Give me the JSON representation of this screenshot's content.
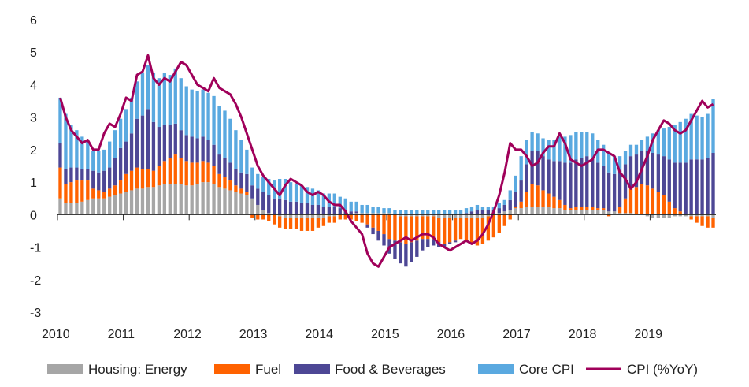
{
  "chart_data": {
    "type": "bar",
    "title": "",
    "xlabel": "",
    "ylabel": "",
    "ylim": [
      -3,
      6
    ],
    "yticks": [
      6,
      5,
      4,
      3,
      2,
      1,
      0,
      -1,
      -2,
      -3
    ],
    "xticks": [
      "2010",
      "2011",
      "2012",
      "2013",
      "2014",
      "2015",
      "2016",
      "2017",
      "2018",
      "2019"
    ],
    "stacked": true,
    "grid": false,
    "legend_position": "bottom",
    "x_start": "2010-01",
    "x_end": "2019-12",
    "colors": {
      "housing_energy": "#a6a6a6",
      "fuel": "#ff6200",
      "food": "#4d4795",
      "core": "#5aa9e0",
      "cpi": "#a0005a"
    },
    "series": [
      {
        "name": "Housing: Energy",
        "values": [
          0.5,
          0.35,
          0.35,
          0.35,
          0.4,
          0.45,
          0.5,
          0.5,
          0.5,
          0.55,
          0.6,
          0.65,
          0.7,
          0.75,
          0.8,
          0.8,
          0.85,
          0.85,
          0.9,
          0.95,
          0.95,
          0.95,
          0.95,
          0.9,
          0.9,
          0.95,
          1.0,
          1.0,
          0.95,
          0.85,
          0.8,
          0.75,
          0.7,
          0.65,
          0.6,
          0.5,
          0.3,
          0.15,
          0.05,
          0.0,
          -0.05,
          -0.1,
          -0.1,
          -0.1,
          -0.1,
          -0.1,
          -0.1,
          -0.1,
          -0.1,
          -0.05,
          -0.05,
          0.0,
          0.0,
          0.0,
          0.05,
          0.05,
          0.05,
          0.05,
          0.05,
          0.05,
          0.05,
          0.0,
          -0.05,
          -0.05,
          -0.05,
          -0.05,
          -0.05,
          -0.05,
          -0.05,
          -0.1,
          -0.1,
          -0.1,
          -0.1,
          -0.1,
          -0.1,
          -0.1,
          -0.1,
          -0.1,
          -0.05,
          0.0,
          0.05,
          0.1,
          0.15,
          0.2,
          0.2,
          0.25,
          0.25,
          0.25,
          0.25,
          0.25,
          0.2,
          0.2,
          0.15,
          0.15,
          0.15,
          0.15,
          0.15,
          0.15,
          0.15,
          0.15,
          0.1,
          0.1,
          0.05,
          0.05,
          0.05,
          0.0,
          0.0,
          -0.05,
          -0.1,
          -0.1,
          -0.1,
          -0.1,
          -0.05,
          -0.05,
          -0.05,
          -0.05,
          -0.05,
          -0.05,
          -0.05,
          -0.1
        ]
      },
      {
        "name": "Fuel",
        "values": [
          0.95,
          0.6,
          0.65,
          0.7,
          0.65,
          0.6,
          0.3,
          0.25,
          0.2,
          0.25,
          0.3,
          0.4,
          0.55,
          0.6,
          0.65,
          0.6,
          0.55,
          0.5,
          0.6,
          0.7,
          0.8,
          0.9,
          0.8,
          0.75,
          0.7,
          0.65,
          0.65,
          0.6,
          0.55,
          0.4,
          0.35,
          0.3,
          0.2,
          0.15,
          0.1,
          -0.1,
          -0.15,
          -0.15,
          -0.2,
          -0.3,
          -0.35,
          -0.35,
          -0.35,
          -0.35,
          -0.4,
          -0.4,
          -0.4,
          -0.3,
          -0.25,
          -0.2,
          -0.2,
          -0.15,
          -0.15,
          -0.15,
          -0.2,
          -0.25,
          -0.3,
          -0.4,
          -0.5,
          -0.6,
          -0.75,
          -0.8,
          -0.8,
          -0.85,
          -0.8,
          -0.75,
          -0.7,
          -0.7,
          -0.7,
          -0.75,
          -0.8,
          -0.75,
          -0.7,
          -0.65,
          -0.7,
          -0.8,
          -0.85,
          -0.8,
          -0.75,
          -0.7,
          -0.55,
          -0.35,
          -0.15,
          0.05,
          0.2,
          0.45,
          0.7,
          0.65,
          0.5,
          0.4,
          0.35,
          0.25,
          0.15,
          0.05,
          0.1,
          0.1,
          0.1,
          0.1,
          0.05,
          0.05,
          -0.05,
          0.0,
          0.2,
          0.45,
          0.75,
          0.85,
          0.95,
          0.9,
          0.8,
          0.7,
          0.6,
          0.4,
          0.2,
          0.1,
          0.0,
          -0.1,
          -0.2,
          -0.3,
          -0.35,
          -0.3
        ]
      },
      {
        "name": "Food & Beverages",
        "values": [
          0.75,
          0.45,
          0.45,
          0.4,
          0.35,
          0.35,
          0.55,
          0.55,
          0.65,
          0.65,
          0.85,
          1.0,
          1.0,
          1.15,
          1.5,
          1.65,
          1.85,
          1.5,
          1.2,
          1.1,
          1.0,
          0.95,
          0.85,
          0.8,
          0.8,
          0.75,
          0.75,
          0.7,
          0.65,
          0.6,
          0.6,
          0.55,
          0.5,
          0.5,
          0.55,
          0.4,
          0.5,
          0.55,
          0.55,
          0.5,
          0.5,
          0.45,
          0.4,
          0.4,
          0.35,
          0.35,
          0.3,
          0.3,
          0.25,
          0.25,
          0.25,
          0.2,
          0.15,
          0.1,
          0.05,
          0.0,
          -0.1,
          -0.2,
          -0.3,
          -0.35,
          -0.45,
          -0.55,
          -0.65,
          -0.7,
          -0.6,
          -0.5,
          -0.35,
          -0.25,
          -0.2,
          -0.15,
          -0.1,
          -0.05,
          -0.05,
          0.0,
          0.05,
          0.1,
          0.15,
          0.15,
          0.15,
          0.15,
          0.15,
          0.2,
          0.3,
          0.45,
          0.65,
          0.85,
          1.0,
          1.05,
          1.05,
          1.05,
          1.1,
          1.2,
          1.3,
          1.4,
          1.45,
          1.5,
          1.55,
          1.5,
          1.4,
          1.3,
          1.2,
          1.15,
          1.1,
          1.05,
          1.0,
          1.0,
          1.0,
          1.05,
          1.1,
          1.15,
          1.2,
          1.3,
          1.4,
          1.5,
          1.6,
          1.7,
          1.7,
          1.7,
          1.75,
          1.9
        ]
      },
      {
        "name": "Core CPI",
        "values": [
          1.4,
          1.7,
          1.3,
          1.15,
          1.0,
          0.85,
          0.6,
          0.65,
          0.65,
          0.8,
          0.85,
          0.9,
          1.0,
          1.1,
          1.15,
          1.3,
          1.35,
          1.5,
          1.5,
          1.6,
          1.55,
          1.7,
          1.6,
          1.5,
          1.45,
          1.45,
          1.45,
          1.45,
          1.5,
          1.5,
          1.45,
          1.35,
          1.2,
          1.0,
          0.75,
          0.55,
          0.45,
          0.45,
          0.5,
          0.55,
          0.6,
          0.65,
          0.6,
          0.55,
          0.55,
          0.5,
          0.5,
          0.45,
          0.4,
          0.4,
          0.4,
          0.35,
          0.35,
          0.3,
          0.3,
          0.25,
          0.25,
          0.2,
          0.2,
          0.15,
          0.15,
          0.15,
          0.15,
          0.15,
          0.15,
          0.15,
          0.15,
          0.15,
          0.15,
          0.15,
          0.15,
          0.15,
          0.15,
          0.15,
          0.15,
          0.15,
          0.15,
          0.1,
          0.1,
          0.1,
          0.15,
          0.15,
          0.3,
          0.5,
          0.75,
          0.75,
          0.6,
          0.55,
          0.55,
          0.6,
          0.65,
          0.75,
          0.8,
          0.85,
          0.85,
          0.8,
          0.75,
          0.75,
          0.7,
          0.65,
          0.6,
          0.55,
          0.45,
          0.4,
          0.35,
          0.3,
          0.35,
          0.45,
          0.6,
          0.75,
          0.85,
          1.0,
          1.15,
          1.25,
          1.35,
          1.4,
          1.35,
          1.3,
          1.35,
          1.65
        ]
      },
      {
        "name": "CPI (%YoY)",
        "type": "line",
        "values": [
          3.6,
          3.0,
          2.6,
          2.4,
          2.2,
          2.3,
          2.0,
          2.0,
          2.5,
          2.8,
          2.7,
          3.1,
          3.6,
          3.5,
          4.3,
          4.4,
          4.9,
          4.2,
          4.0,
          4.2,
          4.1,
          4.4,
          4.7,
          4.6,
          4.3,
          4.0,
          3.9,
          3.8,
          4.2,
          3.9,
          3.8,
          3.7,
          3.4,
          3.0,
          2.5,
          2.0,
          1.5,
          1.2,
          1.0,
          0.8,
          0.6,
          0.9,
          1.1,
          1.0,
          0.9,
          0.7,
          0.6,
          0.7,
          0.6,
          0.4,
          0.3,
          0.3,
          0.1,
          -0.2,
          -0.4,
          -0.6,
          -1.2,
          -1.5,
          -1.6,
          -1.3,
          -1.0,
          -0.9,
          -0.8,
          -0.7,
          -0.8,
          -0.7,
          -0.6,
          -0.6,
          -0.7,
          -0.9,
          -1.0,
          -1.1,
          -1.0,
          -0.9,
          -0.8,
          -0.9,
          -0.8,
          -0.6,
          -0.3,
          0.1,
          0.6,
          1.3,
          2.2,
          2.0,
          2.0,
          1.8,
          1.5,
          1.6,
          1.9,
          2.1,
          2.1,
          2.5,
          2.2,
          1.7,
          1.6,
          1.5,
          1.6,
          1.7,
          2.0,
          2.0,
          1.9,
          1.8,
          1.3,
          1.1,
          0.8,
          1.0,
          1.4,
          1.8,
          2.3,
          2.6,
          2.9,
          2.8,
          2.6,
          2.5,
          2.6,
          2.9,
          3.2,
          3.5,
          3.3,
          3.4
        ]
      }
    ]
  }
}
